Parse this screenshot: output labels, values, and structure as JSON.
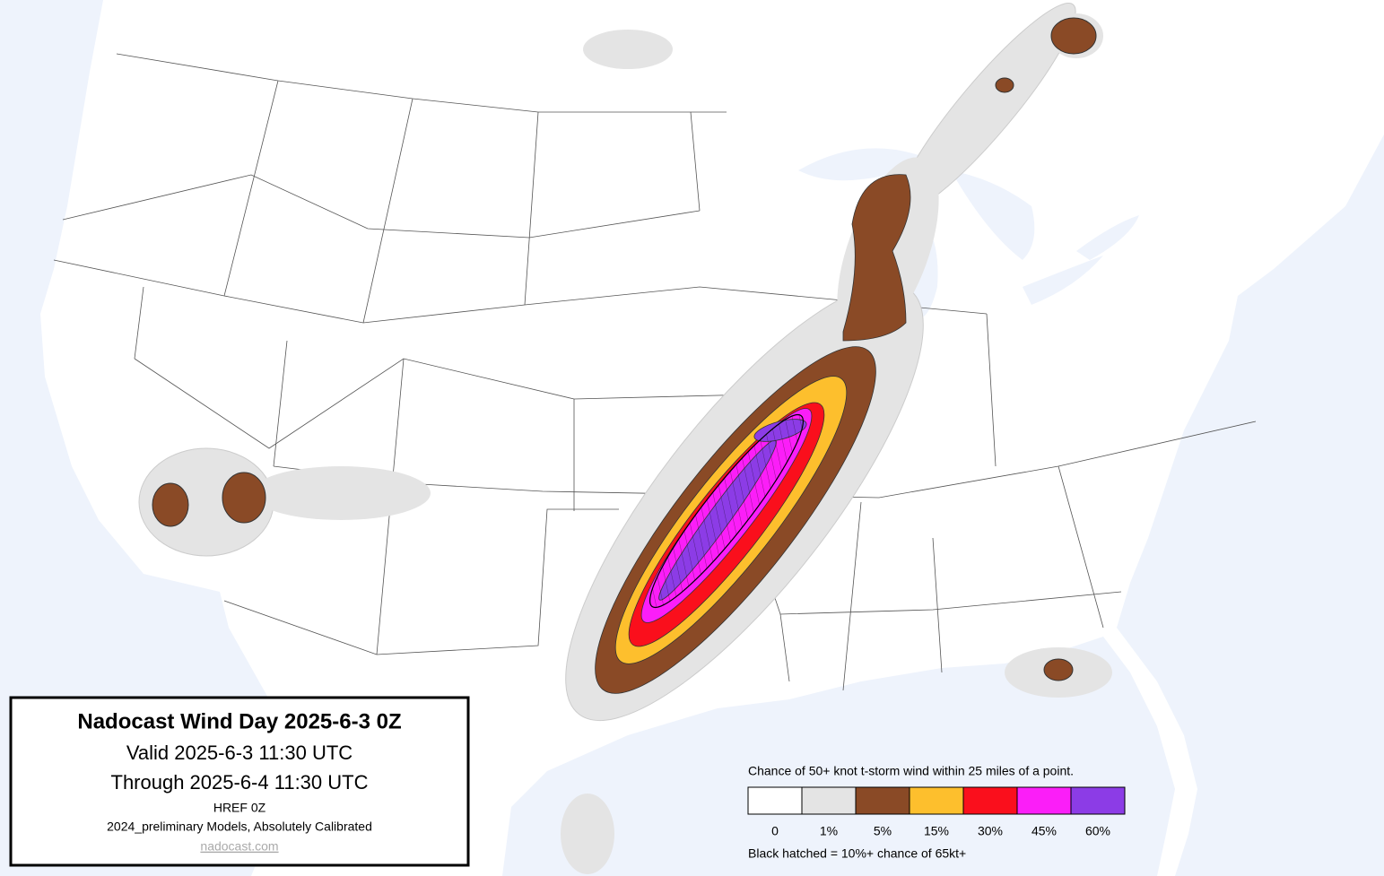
{
  "title_box": {
    "title": "Nadocast Wind Day 2025-6-3 0Z",
    "valid": "Valid 2025-6-3 11:30 UTC",
    "through": "Through 2025-6-4 11:30 UTC",
    "model": "HREF 0Z",
    "calibration": "2024_preliminary Models, Absolutely Calibrated",
    "link": "nadocast.com"
  },
  "legend": {
    "caption": "Chance of 50+ knot t-storm wind within 25 miles of a point.",
    "bins": [
      {
        "label": "0",
        "color": "#ffffff"
      },
      {
        "label": "1%",
        "color": "#e4e4e4"
      },
      {
        "label": "5%",
        "color": "#8a4a26"
      },
      {
        "label": "15%",
        "color": "#fdbf2d"
      },
      {
        "label": "30%",
        "color": "#fa0f1c"
      },
      {
        "label": "45%",
        "color": "#fb1ef8"
      },
      {
        "label": "60%",
        "color": "#8c3ce6"
      }
    ],
    "note": "Black hatched = 10%+ chance of 65kt+"
  }
}
